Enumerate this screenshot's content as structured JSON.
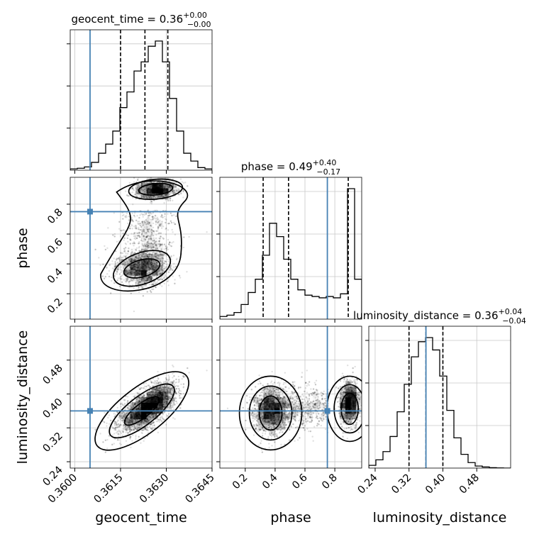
{
  "chart_data": {
    "type": "corner",
    "parameters": [
      "geocent_time",
      "phase",
      "luminosity_distance"
    ],
    "truths": {
      "geocent_time": 0.3605,
      "phase": 0.75,
      "luminosity_distance": 0.36
    },
    "titles": {
      "geocent_time": {
        "name": "geocent_time",
        "value": "0.36",
        "plus": "+0.00",
        "minus": "−0.00"
      },
      "phase": {
        "name": "phase",
        "value": "0.49",
        "plus": "+0.40",
        "minus": "−0.17"
      },
      "luminosity_distance": {
        "name": "luminosity_distance",
        "value": "0.36",
        "plus": "+0.04",
        "minus": "−0.04"
      }
    },
    "axis_labels": {
      "x": [
        "geocent_time",
        "phase",
        "luminosity_distance"
      ],
      "y": [
        "phase",
        "luminosity_distance"
      ]
    },
    "ranges": {
      "geocent_time": [
        0.35985,
        0.3645
      ],
      "phase": [
        0.03,
        0.98
      ],
      "luminosity_distance": [
        0.225,
        0.56
      ]
    },
    "ticks": {
      "geocent_time": [
        "0.3600",
        "0.3615",
        "0.3630",
        "0.3645"
      ],
      "phase": [
        "0.2",
        "0.4",
        "0.6",
        "0.8"
      ],
      "luminosity_distance": [
        "0.24",
        "0.32",
        "0.40",
        "0.48"
      ]
    },
    "quantiles": {
      "geocent_time": [
        0.3615,
        0.3623,
        0.36305
      ],
      "phase": [
        0.32,
        0.49,
        0.89
      ],
      "luminosity_distance": [
        0.32,
        0.36,
        0.4
      ]
    },
    "histograms": {
      "geocent_time": [
        0.01,
        0.015,
        0.025,
        0.06,
        0.13,
        0.2,
        0.3,
        0.48,
        0.6,
        0.76,
        0.83,
        0.95,
        0.99,
        0.83,
        0.55,
        0.3,
        0.13,
        0.07,
        0.02,
        0.01
      ],
      "phase": [
        0.02,
        0.03,
        0.05,
        0.11,
        0.2,
        0.3,
        0.48,
        0.72,
        0.62,
        0.45,
        0.3,
        0.22,
        0.18,
        0.17,
        0.16,
        0.17,
        0.16,
        0.19,
        0.98,
        0.3
      ],
      "luminosity_distance": [
        0.02,
        0.06,
        0.12,
        0.23,
        0.41,
        0.61,
        0.81,
        0.92,
        0.95,
        0.86,
        0.67,
        0.42,
        0.22,
        0.1,
        0.04,
        0.015,
        0.008,
        0.003,
        0.001,
        0.0
      ]
    },
    "grid": true,
    "truth_color": "#4682b4"
  }
}
